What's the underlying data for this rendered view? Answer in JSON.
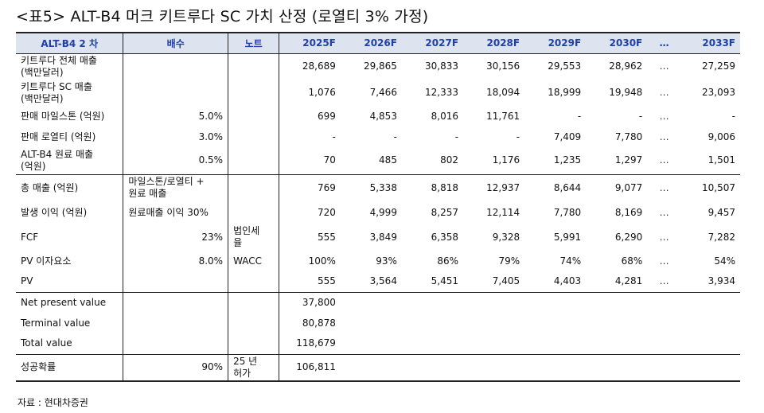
{
  "title": "<표5> ALT-B4 머크 키트루다 SC 가치 산정 (로열티 3% 가정)",
  "header": {
    "col0": "ALT-B4 2 차",
    "col1": "배수",
    "col2": "노트",
    "years": [
      "2025F",
      "2026F",
      "2027F",
      "2028F",
      "2029F",
      "2030F"
    ],
    "dots": "…",
    "last": "2033F"
  },
  "rows": [
    {
      "label": "키트루다 전체 매출\n(백만달러)",
      "mult": "",
      "note": "",
      "v": "",
      "years": [
        "28,689",
        "29,865",
        "30,833",
        "30,156",
        "29,553",
        "28,962"
      ],
      "dots": "…",
      "last": "27,259",
      "h": 33
    },
    {
      "label": "키트루다 SC 매출\n(백만달러)",
      "mult": "",
      "note": "",
      "v": "",
      "years": [
        "1,076",
        "7,466",
        "12,333",
        "18,094",
        "18,999",
        "19,948"
      ],
      "dots": "…",
      "last": "23,093",
      "h": 33
    },
    {
      "label": "판매 마일스톤 (억원)",
      "mult": "5.0%",
      "note": "",
      "v": "",
      "years": [
        "699",
        "4,853",
        "8,016",
        "11,761",
        "-",
        "-"
      ],
      "dots": "…",
      "last": "-",
      "h": 26
    },
    {
      "label": "판매 로열티 (억원)",
      "mult": "3.0%",
      "note": "",
      "v": "",
      "years": [
        "-",
        "-",
        "-",
        "-",
        "7,409",
        "7,780"
      ],
      "dots": "…",
      "last": "9,006",
      "h": 26
    },
    {
      "label": "ALT-B4 원료 매출\n(억원)",
      "mult": "0.5%",
      "note": "",
      "v": "",
      "years": [
        "70",
        "485",
        "802",
        "1,176",
        "1,235",
        "1,297"
      ],
      "dots": "…",
      "last": "1,501",
      "h": 34,
      "sep": true
    },
    {
      "label": "총 매출 (억원)",
      "mult": "마일스톤/로열티 +\n원료 매출",
      "multAlign": "left",
      "note": "",
      "v": "",
      "years": [
        "769",
        "5,338",
        "8,818",
        "12,937",
        "8,644",
        "9,077"
      ],
      "dots": "…",
      "last": "10,507",
      "h": 34
    },
    {
      "label": "발생 이익 (억원)",
      "mult": "원료매출 이익 30%",
      "multAlign": "left",
      "note": "",
      "v": "",
      "years": [
        "720",
        "4,999",
        "8,257",
        "12,114",
        "7,780",
        "8,169"
      ],
      "dots": "…",
      "last": "9,457",
      "h": 28
    },
    {
      "label": "FCF",
      "mult": "23%",
      "note": "법인세\n율",
      "v": "",
      "years": [
        "555",
        "3,849",
        "6,358",
        "9,328",
        "5,991",
        "6,290"
      ],
      "dots": "…",
      "last": "7,282",
      "h": 34
    },
    {
      "label": "PV 이자요소",
      "mult": "8.0%",
      "note": "WACC",
      "v": "",
      "years": [
        "100%",
        "93%",
        "86%",
        "79%",
        "74%",
        "68%"
      ],
      "dots": "…",
      "last": "54%",
      "h": 26
    },
    {
      "label": "PV",
      "mult": "",
      "note": "",
      "v": "",
      "years": [
        "555",
        "3,564",
        "5,451",
        "7,405",
        "4,403",
        "4,281"
      ],
      "dots": "…",
      "last": "3,934",
      "h": 26,
      "sep": true
    },
    {
      "label": "Net present value",
      "mult": "",
      "note": "",
      "v": "37,800",
      "years": [
        "",
        "",
        "",
        "",
        "",
        ""
      ],
      "dots": "",
      "last": "",
      "h": 26
    },
    {
      "label": "Terminal value",
      "mult": "",
      "note": "",
      "v": "80,878",
      "years": [
        "",
        "",
        "",
        "",
        "",
        ""
      ],
      "dots": "",
      "last": "",
      "h": 26
    },
    {
      "label": "Total value",
      "mult": "",
      "note": "",
      "v": "118,679",
      "years": [
        "",
        "",
        "",
        "",
        "",
        ""
      ],
      "dots": "",
      "last": "",
      "h": 26,
      "sep": true
    },
    {
      "label": "성공확률",
      "mult": "90%",
      "note": "25 년\n허가",
      "v": "106,811",
      "years": [
        "",
        "",
        "",
        "",
        "",
        ""
      ],
      "dots": "",
      "last": "",
      "h": 34,
      "last_row": true
    }
  ],
  "source": "자료 : 현대차증권"
}
